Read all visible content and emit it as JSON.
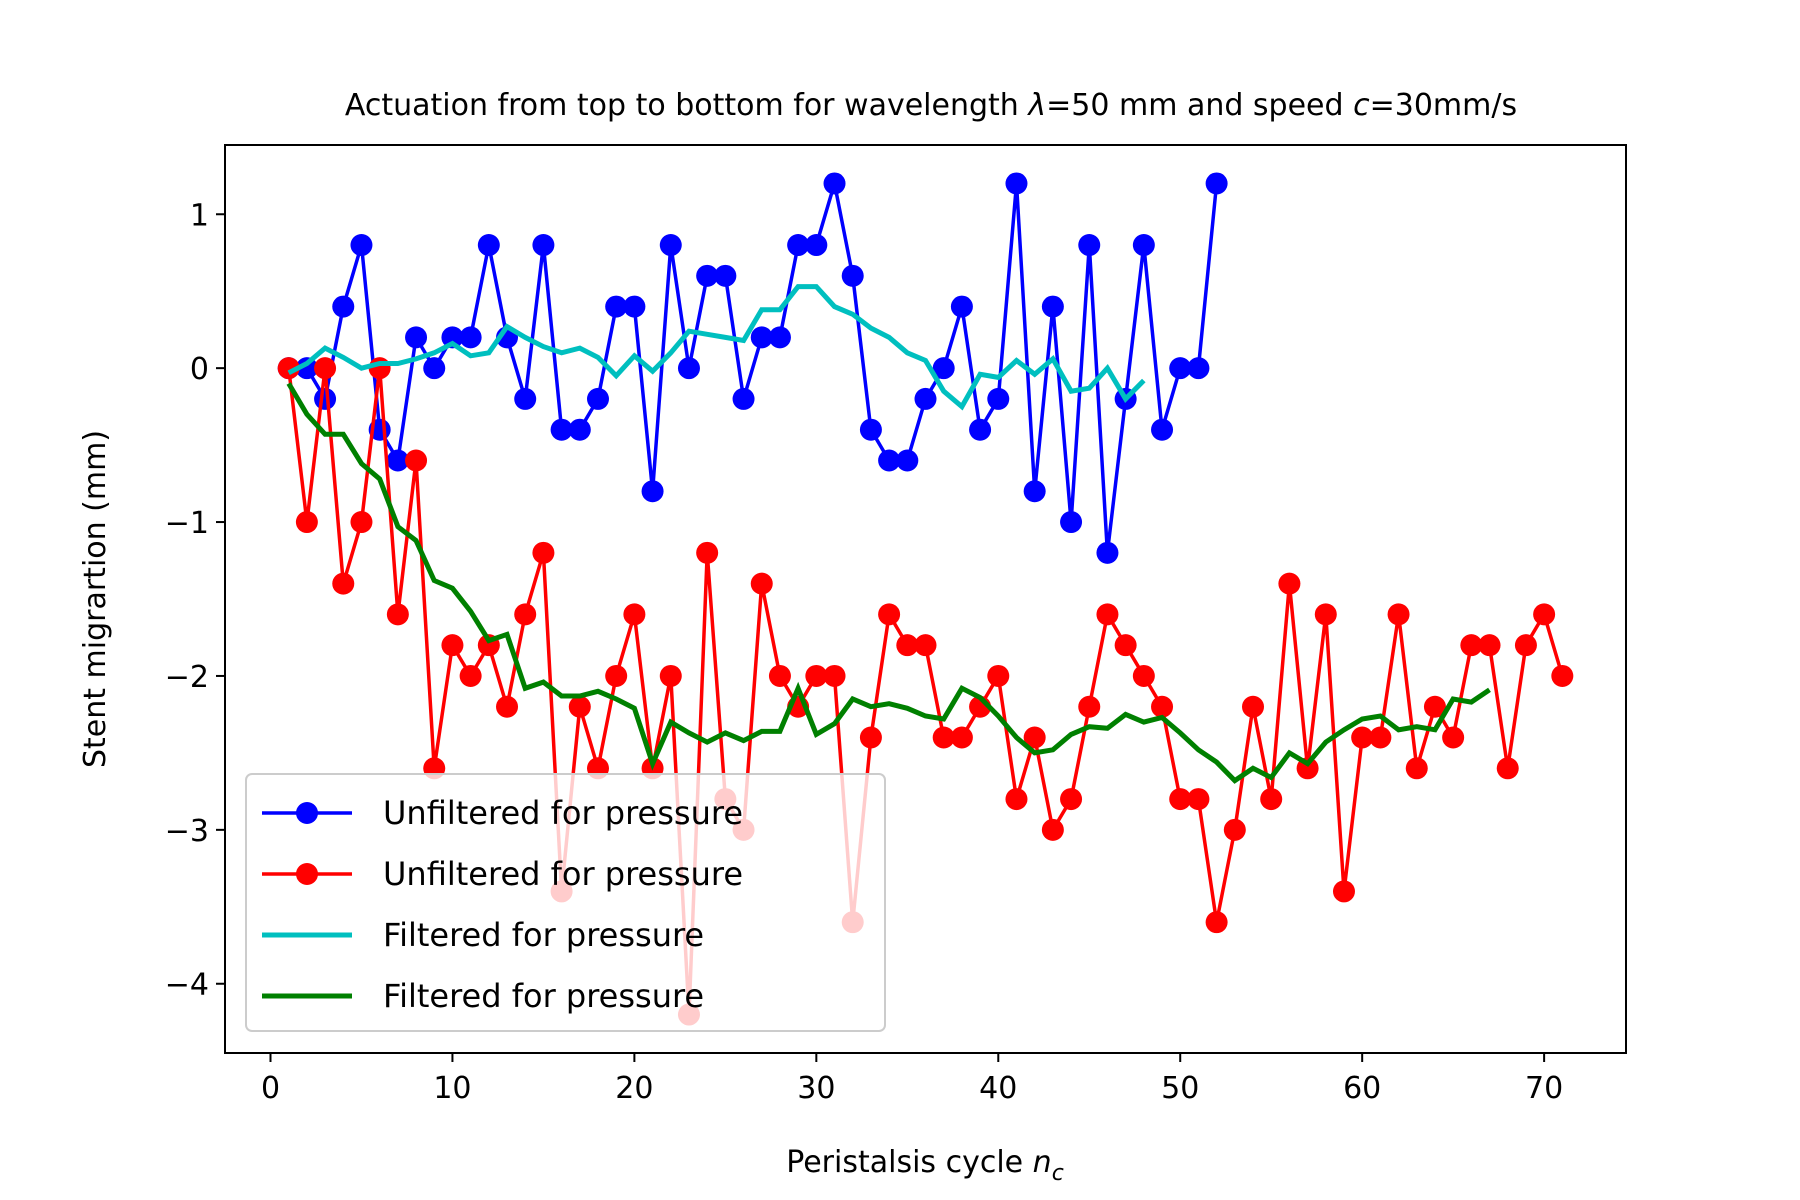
{
  "chart_data": {
    "type": "line",
    "title": "Actuation from top to bottom for wavelength",
    "title_symbol_lambda": "λ",
    "title_mid": "=50 mm and speed",
    "title_symbol_c": "c",
    "title_end": "=30mm/s",
    "xlabel": "Peristalsis cycle",
    "xlabel_symbol": "n",
    "xlabel_subscript": "c",
    "ylabel": "Stent migrartion (mm)",
    "xlim": [
      -2.5,
      74.5
    ],
    "ylim": [
      -4.45,
      1.45
    ],
    "xticks": [
      0,
      10,
      20,
      30,
      40,
      50,
      60,
      70
    ],
    "yticks": [
      1,
      0,
      -1,
      -2,
      -3,
      -4
    ],
    "ytick_labels": [
      "1",
      "0",
      "−1",
      "−2",
      "−3",
      "−4"
    ],
    "grid": false,
    "legend_position": "lower-left",
    "series": [
      {
        "name": "Unfiltered for pressure",
        "color": "#0000ff",
        "style": "line-marker",
        "x": [
          1,
          2,
          3,
          4,
          5,
          6,
          7,
          8,
          9,
          10,
          11,
          12,
          13,
          14,
          15,
          16,
          17,
          18,
          19,
          20,
          21,
          22,
          23,
          24,
          25,
          26,
          27,
          28,
          29,
          30,
          31,
          32,
          33,
          34,
          35,
          36,
          37,
          38,
          39,
          40,
          41,
          42,
          43,
          44,
          45,
          46,
          47,
          48,
          49,
          50,
          51,
          52
        ],
        "y": [
          0,
          0,
          -0.2,
          0.4,
          0.8,
          -0.4,
          -0.6,
          0.2,
          0,
          0.2,
          0.2,
          0.8,
          0.2,
          -0.2,
          0.8,
          -0.4,
          -0.4,
          -0.2,
          0.4,
          0.4,
          -0.8,
          0.8,
          0,
          0.6,
          0.6,
          -0.2,
          0.2,
          0.2,
          0.8,
          0.8,
          1.2,
          0.6,
          -0.4,
          -0.6,
          -0.6,
          -0.2,
          0,
          0.4,
          -0.4,
          -0.2,
          1.2,
          -0.8,
          0.4,
          -1.0,
          0.8,
          -1.2,
          -0.2,
          0.8,
          -0.4,
          0,
          0,
          1.2
        ]
      },
      {
        "name": "Unfiltered for pressure",
        "color": "#ff0000",
        "style": "line-marker",
        "x": [
          1,
          2,
          3,
          4,
          5,
          6,
          7,
          8,
          9,
          10,
          11,
          12,
          13,
          14,
          15,
          16,
          17,
          18,
          19,
          20,
          21,
          22,
          23,
          24,
          25,
          26,
          27,
          28,
          29,
          30,
          31,
          32,
          33,
          34,
          35,
          36,
          37,
          38,
          39,
          40,
          41,
          42,
          43,
          44,
          45,
          46,
          47,
          48,
          49,
          50,
          51,
          52,
          53,
          54,
          55,
          56,
          57,
          58,
          59,
          60,
          61,
          62,
          63,
          64,
          65,
          66,
          67,
          68,
          69,
          70,
          71
        ],
        "y": [
          0,
          -1.0,
          0,
          -1.4,
          -1.0,
          0,
          -1.6,
          -0.6,
          -2.6,
          -1.8,
          -2.0,
          -1.8,
          -2.2,
          -1.6,
          -1.2,
          -3.4,
          -2.2,
          -2.6,
          -2.0,
          -1.6,
          -2.6,
          -2.0,
          -4.2,
          -1.2,
          -2.8,
          -3.0,
          -1.4,
          -2.0,
          -2.2,
          -2.0,
          -2.0,
          -3.6,
          -2.4,
          -1.6,
          -1.8,
          -1.8,
          -2.4,
          -2.4,
          -2.2,
          -2.0,
          -2.8,
          -2.4,
          -3.0,
          -2.8,
          -2.2,
          -1.6,
          -1.8,
          -2.0,
          -2.2,
          -2.8,
          -2.8,
          -3.6,
          -3.0,
          -2.2,
          -2.8,
          -1.4,
          -2.6,
          -1.6,
          -3.4,
          -2.4,
          -2.4,
          -1.6,
          -2.6,
          -2.2,
          -2.4,
          -1.8,
          -1.8,
          -2.6,
          -1.8,
          -1.6,
          -2.0
        ]
      },
      {
        "name": "Filtered for pressure",
        "color": "#00bfbf",
        "style": "line",
        "x": [
          1,
          2,
          3,
          4,
          5,
          6,
          7,
          8,
          9,
          10,
          11,
          12,
          13,
          14,
          15,
          16,
          17,
          18,
          19,
          20,
          21,
          22,
          23,
          24,
          25,
          26,
          27,
          28,
          29,
          30,
          31,
          32,
          33,
          34,
          35,
          36,
          37,
          38,
          39,
          40,
          41,
          42,
          43,
          44,
          45,
          46,
          47,
          48
        ],
        "y": [
          -0.03,
          0.03,
          0.13,
          0.07,
          0.0,
          0.03,
          0.03,
          0.06,
          0.1,
          0.16,
          0.08,
          0.1,
          0.27,
          0.2,
          0.14,
          0.1,
          0.13,
          0.07,
          -0.05,
          0.08,
          -0.02,
          0.1,
          0.24,
          0.22,
          0.2,
          0.18,
          0.38,
          0.38,
          0.53,
          0.53,
          0.4,
          0.35,
          0.26,
          0.2,
          0.1,
          0.05,
          -0.15,
          -0.25,
          -0.04,
          -0.06,
          0.05,
          -0.04,
          0.06,
          -0.15,
          -0.13,
          0.0,
          -0.2,
          -0.08
        ]
      },
      {
        "name": "Filtered for pressure",
        "color": "#008000",
        "style": "line",
        "x": [
          1,
          2,
          3,
          4,
          5,
          6,
          7,
          8,
          9,
          10,
          11,
          12,
          13,
          14,
          15,
          16,
          17,
          18,
          19,
          20,
          21,
          22,
          23,
          24,
          25,
          26,
          27,
          28,
          29,
          30,
          31,
          32,
          33,
          34,
          35,
          36,
          37,
          38,
          39,
          40,
          41,
          42,
          43,
          44,
          45,
          46,
          47,
          48,
          49,
          50,
          51,
          52,
          53,
          54,
          55,
          56,
          57,
          58,
          59,
          60,
          61,
          62,
          63,
          64,
          65,
          66,
          67
        ],
        "y": [
          -0.1,
          -0.3,
          -0.43,
          -0.43,
          -0.62,
          -0.72,
          -1.03,
          -1.12,
          -1.38,
          -1.43,
          -1.58,
          -1.77,
          -1.73,
          -2.08,
          -2.04,
          -2.13,
          -2.13,
          -2.1,
          -2.15,
          -2.21,
          -2.57,
          -2.3,
          -2.37,
          -2.43,
          -2.37,
          -2.42,
          -2.36,
          -2.36,
          -2.08,
          -2.38,
          -2.31,
          -2.15,
          -2.2,
          -2.18,
          -2.21,
          -2.26,
          -2.28,
          -2.08,
          -2.14,
          -2.26,
          -2.4,
          -2.5,
          -2.48,
          -2.38,
          -2.33,
          -2.34,
          -2.25,
          -2.3,
          -2.27,
          -2.37,
          -2.48,
          -2.56,
          -2.68,
          -2.6,
          -2.66,
          -2.5,
          -2.57,
          -2.43,
          -2.35,
          -2.28,
          -2.26,
          -2.35,
          -2.33,
          -2.35,
          -2.15,
          -2.17,
          -2.09
        ]
      }
    ]
  }
}
